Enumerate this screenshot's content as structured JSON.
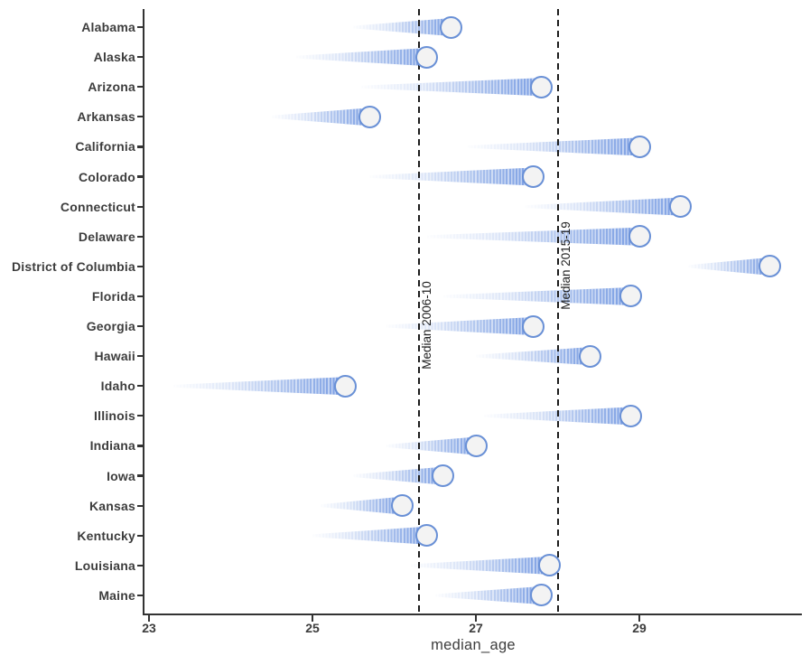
{
  "chart_data": {
    "type": "comet",
    "title": "",
    "xlabel": "median_age",
    "ylabel": "",
    "x_ticks": [
      "23",
      "25",
      "27",
      "29"
    ],
    "x_tick_values": [
      23,
      25,
      27,
      29
    ],
    "xlim": [
      22.9,
      31.05
    ],
    "grid": false,
    "legend": false,
    "reference_lines": [
      {
        "value": 26.3,
        "label": "Median 2006-10"
      },
      {
        "value": 28.0,
        "label": "Median 2015-19"
      }
    ],
    "series_note": "trail tail = 2006-10 value, circle head = 2015-19 value",
    "states": [
      {
        "name": "Alabama",
        "start": 25.5,
        "end": 26.7
      },
      {
        "name": "Alaska",
        "start": 24.8,
        "end": 26.4
      },
      {
        "name": "Arizona",
        "start": 25.6,
        "end": 27.8
      },
      {
        "name": "Arkansas",
        "start": 24.5,
        "end": 25.7
      },
      {
        "name": "California",
        "start": 26.9,
        "end": 29.0
      },
      {
        "name": "Colorado",
        "start": 25.7,
        "end": 27.7
      },
      {
        "name": "Connecticut",
        "start": 27.6,
        "end": 29.5
      },
      {
        "name": "Delaware",
        "start": 26.4,
        "end": 29.0
      },
      {
        "name": "District of Columbia",
        "start": 29.6,
        "end": 30.6
      },
      {
        "name": "Florida",
        "start": 26.6,
        "end": 28.9
      },
      {
        "name": "Georgia",
        "start": 25.9,
        "end": 27.7
      },
      {
        "name": "Hawaii",
        "start": 27.0,
        "end": 28.4
      },
      {
        "name": "Idaho",
        "start": 23.3,
        "end": 25.4
      },
      {
        "name": "Illinois",
        "start": 27.1,
        "end": 28.9
      },
      {
        "name": "Indiana",
        "start": 25.9,
        "end": 27.0
      },
      {
        "name": "Iowa",
        "start": 25.5,
        "end": 26.6
      },
      {
        "name": "Kansas",
        "start": 25.1,
        "end": 26.1
      },
      {
        "name": "Kentucky",
        "start": 25.0,
        "end": 26.4
      },
      {
        "name": "Louisiana",
        "start": 26.2,
        "end": 27.9
      },
      {
        "name": "Maine",
        "start": 26.5,
        "end": 27.8
      }
    ]
  },
  "colors": {
    "trail": "#7da0e3",
    "head_fill": "#f3f3f3",
    "head_stroke": "#6990d6",
    "axis": "#333333",
    "text": "#3d3d3d",
    "refline": "#1c1c1c"
  }
}
